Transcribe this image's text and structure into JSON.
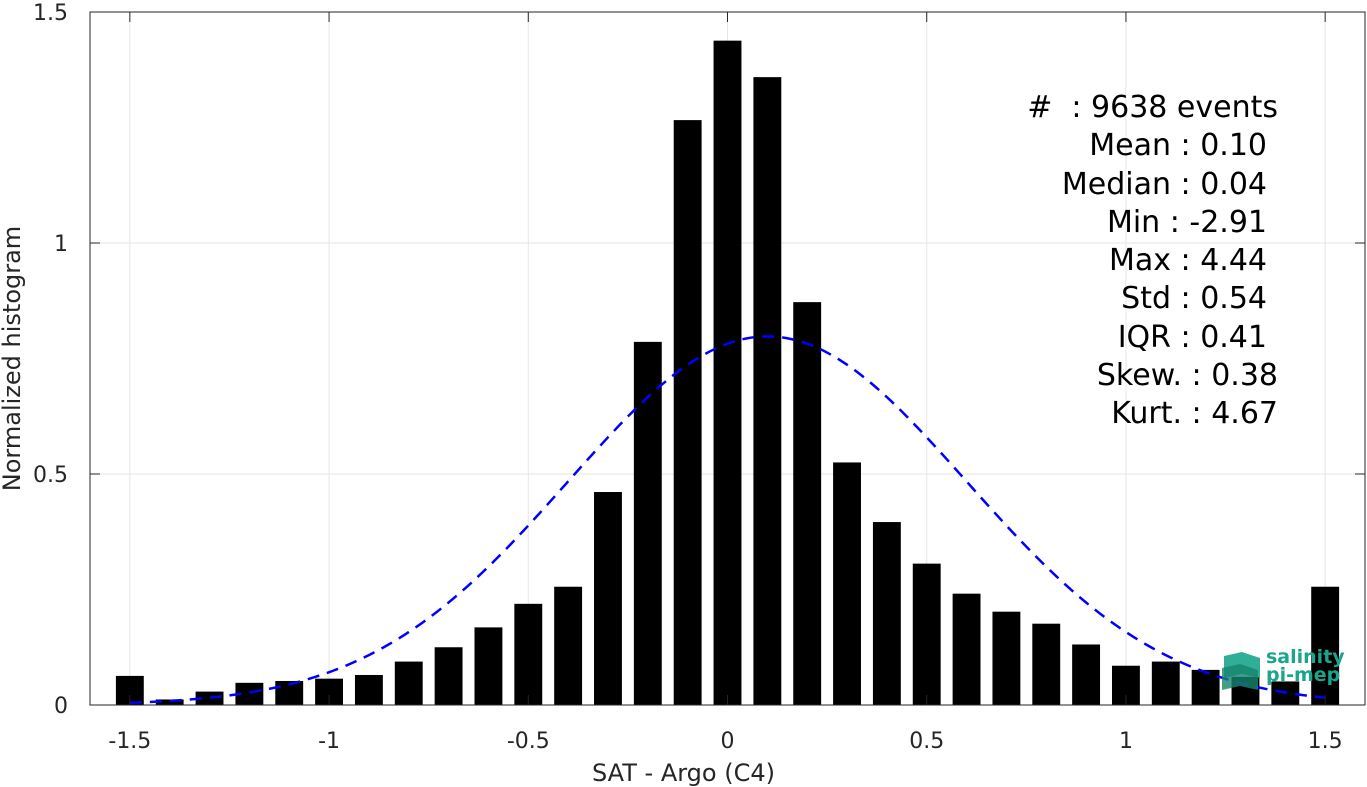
{
  "chart_data": {
    "type": "bar",
    "xlabel": "SAT - Argo (C4)",
    "ylabel": "Normalized histogram",
    "xlim": [
      -1.6,
      1.6
    ],
    "ylim": [
      0,
      1.5
    ],
    "xticks": [
      -1.5,
      -1,
      -0.5,
      0,
      0.5,
      1,
      1.5
    ],
    "xtick_labels": [
      "-1.5",
      "-1",
      "-0.5",
      "0",
      "0.5",
      "1",
      "1.5"
    ],
    "yticks": [
      0,
      0.5,
      1,
      1.5
    ],
    "ytick_labels": [
      "0",
      "0.5",
      "1",
      "1.5"
    ],
    "grid": true,
    "bar_width": 0.07,
    "bar_color": "#000000",
    "x": [
      -1.5,
      -1.4,
      -1.3,
      -1.2,
      -1.1,
      -1.0,
      -0.9,
      -0.8,
      -0.7,
      -0.6,
      -0.5,
      -0.4,
      -0.3,
      -0.2,
      -0.1,
      0.0,
      0.1,
      0.2,
      0.3,
      0.4,
      0.5,
      0.6,
      0.7,
      0.8,
      0.9,
      1.0,
      1.1,
      1.2,
      1.3,
      1.4,
      1.5
    ],
    "values": [
      0.063,
      0.012,
      0.029,
      0.048,
      0.052,
      0.057,
      0.065,
      0.094,
      0.125,
      0.168,
      0.219,
      0.256,
      0.461,
      0.786,
      1.266,
      1.438,
      1.359,
      0.872,
      0.525,
      0.396,
      0.306,
      0.241,
      0.202,
      0.176,
      0.131,
      0.085,
      0.094,
      0.076,
      0.061,
      0.051,
      0.256
    ],
    "fit_curve": {
      "type": "normal",
      "mean": 0.1,
      "std": 0.5,
      "color": "#0000ff",
      "style": "dashed",
      "x_range": [
        -1.5,
        1.5
      ]
    },
    "annotations": [
      "#  : 9638 events",
      "Mean : 0.10",
      "Median : 0.04",
      "Min : -2.91",
      "Max : 4.44",
      "Std : 0.54",
      "IQR : 0.41",
      "Skew. : 0.38",
      "Kurt. : 4.67"
    ]
  },
  "logo": {
    "text_line1": "salinity",
    "text_line2": "pi-mep",
    "color": "#1aa58c"
  }
}
